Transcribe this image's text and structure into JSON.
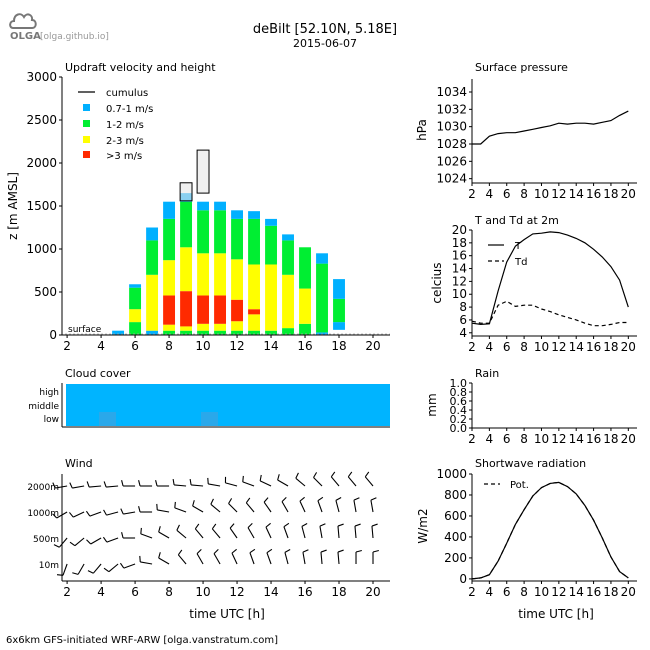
{
  "header": {
    "logo_text": "OLGA",
    "logo_link": "[olga.github.io]",
    "title": "deBilt [52.10N, 5.18E]",
    "date": "2015-06-07",
    "footer": "6x6km GFS-initiated WRF-ARW [olga.vanstratum.com]"
  },
  "colors": {
    "light_blue": "#00b0ff",
    "green": "#00ee32",
    "yellow": "#ffff00",
    "red": "#ff2a00",
    "cloud": "#00b4ff",
    "cloud_dark": "#2aa8ea"
  },
  "chart_data": [
    {
      "id": "updraft",
      "type": "bar",
      "title": "Updraft velocity and height",
      "ylabel": "z [m AMSL]",
      "xlabel": "",
      "xlim": [
        1.7,
        21
      ],
      "ylim": [
        0,
        3000
      ],
      "xticks": [
        2,
        4,
        6,
        8,
        10,
        12,
        14,
        16,
        18,
        20
      ],
      "yticks": [
        0,
        500,
        1000,
        1500,
        2000,
        2500,
        3000
      ],
      "annotation": "surface",
      "legend": [
        "cumulus",
        "0.7-1 m/s",
        "1-2 m/s",
        "2-3 m/s",
        ">3 m/s"
      ],
      "legend_position": "top-left",
      "bars": [
        {
          "x": 5,
          "segments": [
            {
              "from": 0,
              "to": 50,
              "cls": "0.7-1 m/s"
            }
          ]
        },
        {
          "x": 6,
          "segments": [
            {
              "from": 0,
              "to": 150,
              "cls": "1-2 m/s"
            },
            {
              "from": 150,
              "to": 300,
              "cls": "2-3 m/s"
            },
            {
              "from": 300,
              "to": 550,
              "cls": "1-2 m/s"
            },
            {
              "from": 550,
              "to": 590,
              "cls": "0.7-1 m/s"
            }
          ]
        },
        {
          "x": 7,
          "segments": [
            {
              "from": 0,
              "to": 50,
              "cls": "0.7-1 m/s"
            },
            {
              "from": 50,
              "to": 700,
              "cls": "2-3 m/s"
            },
            {
              "from": 700,
              "to": 1100,
              "cls": "1-2 m/s"
            },
            {
              "from": 1100,
              "to": 1250,
              "cls": "0.7-1 m/s"
            }
          ]
        },
        {
          "x": 8,
          "segments": [
            {
              "from": 0,
              "to": 50,
              "cls": "1-2 m/s"
            },
            {
              "from": 50,
              "to": 120,
              "cls": "2-3 m/s"
            },
            {
              "from": 120,
              "to": 460,
              "cls": "red"
            },
            {
              "from": 460,
              "to": 870,
              "cls": "2-3 m/s"
            },
            {
              "from": 870,
              "to": 1350,
              "cls": "1-2 m/s"
            },
            {
              "from": 1350,
              "to": 1550,
              "cls": "0.7-1 m/s"
            }
          ]
        },
        {
          "x": 9,
          "segments": [
            {
              "from": 0,
              "to": 50,
              "cls": "1-2 m/s"
            },
            {
              "from": 50,
              "to": 100,
              "cls": "2-3 m/s"
            },
            {
              "from": 100,
              "to": 510,
              "cls": "red"
            },
            {
              "from": 510,
              "to": 1020,
              "cls": "2-3 m/s"
            },
            {
              "from": 1020,
              "to": 1550,
              "cls": "1-2 m/s"
            },
            {
              "from": 1550,
              "to": 1650,
              "cls": "0.7-1 m/s"
            }
          ]
        },
        {
          "x": 10,
          "segments": [
            {
              "from": 0,
              "to": 50,
              "cls": "1-2 m/s"
            },
            {
              "from": 50,
              "to": 130,
              "cls": "2-3 m/s"
            },
            {
              "from": 130,
              "to": 460,
              "cls": "red"
            },
            {
              "from": 460,
              "to": 950,
              "cls": "2-3 m/s"
            },
            {
              "from": 950,
              "to": 1450,
              "cls": "1-2 m/s"
            },
            {
              "from": 1450,
              "to": 1550,
              "cls": "0.7-1 m/s"
            }
          ]
        },
        {
          "x": 11,
          "segments": [
            {
              "from": 0,
              "to": 50,
              "cls": "1-2 m/s"
            },
            {
              "from": 50,
              "to": 130,
              "cls": "2-3 m/s"
            },
            {
              "from": 130,
              "to": 460,
              "cls": "red"
            },
            {
              "from": 460,
              "to": 950,
              "cls": "2-3 m/s"
            },
            {
              "from": 950,
              "to": 1450,
              "cls": "1-2 m/s"
            },
            {
              "from": 1450,
              "to": 1550,
              "cls": "0.7-1 m/s"
            }
          ]
        },
        {
          "x": 12,
          "segments": [
            {
              "from": 0,
              "to": 50,
              "cls": "1-2 m/s"
            },
            {
              "from": 50,
              "to": 160,
              "cls": "2-3 m/s"
            },
            {
              "from": 160,
              "to": 410,
              "cls": "red"
            },
            {
              "from": 410,
              "to": 880,
              "cls": "2-3 m/s"
            },
            {
              "from": 880,
              "to": 1350,
              "cls": "1-2 m/s"
            },
            {
              "from": 1350,
              "to": 1450,
              "cls": "0.7-1 m/s"
            }
          ]
        },
        {
          "x": 13,
          "segments": [
            {
              "from": 0,
              "to": 50,
              "cls": "1-2 m/s"
            },
            {
              "from": 50,
              "to": 240,
              "cls": "2-3 m/s"
            },
            {
              "from": 240,
              "to": 300,
              "cls": "red"
            },
            {
              "from": 300,
              "to": 820,
              "cls": "2-3 m/s"
            },
            {
              "from": 820,
              "to": 1350,
              "cls": "1-2 m/s"
            },
            {
              "from": 1350,
              "to": 1440,
              "cls": "0.7-1 m/s"
            }
          ]
        },
        {
          "x": 14,
          "segments": [
            {
              "from": 0,
              "to": 50,
              "cls": "1-2 m/s"
            },
            {
              "from": 50,
              "to": 820,
              "cls": "2-3 m/s"
            },
            {
              "from": 820,
              "to": 1270,
              "cls": "1-2 m/s"
            },
            {
              "from": 1270,
              "to": 1350,
              "cls": "0.7-1 m/s"
            }
          ]
        },
        {
          "x": 15,
          "segments": [
            {
              "from": 0,
              "to": 80,
              "cls": "1-2 m/s"
            },
            {
              "from": 80,
              "to": 700,
              "cls": "2-3 m/s"
            },
            {
              "from": 700,
              "to": 1100,
              "cls": "1-2 m/s"
            },
            {
              "from": 1100,
              "to": 1170,
              "cls": "0.7-1 m/s"
            }
          ]
        },
        {
          "x": 16,
          "segments": [
            {
              "from": 0,
              "to": 130,
              "cls": "1-2 m/s"
            },
            {
              "from": 130,
              "to": 540,
              "cls": "2-3 m/s"
            },
            {
              "from": 540,
              "to": 1020,
              "cls": "1-2 m/s"
            }
          ]
        },
        {
          "x": 17,
          "segments": [
            {
              "from": 0,
              "to": 30,
              "cls": "0.7-1 m/s"
            },
            {
              "from": 30,
              "to": 830,
              "cls": "1-2 m/s"
            },
            {
              "from": 830,
              "to": 950,
              "cls": "0.7-1 m/s"
            }
          ]
        },
        {
          "x": 18,
          "segments": [
            {
              "from": 60,
              "to": 150,
              "cls": "0.7-1 m/s"
            },
            {
              "from": 150,
              "to": 420,
              "cls": "1-2 m/s"
            },
            {
              "from": 420,
              "to": 650,
              "cls": "0.7-1 m/s"
            }
          ]
        }
      ],
      "cumulus": [
        {
          "x": 9,
          "base": 1560,
          "top": 1770
        },
        {
          "x": 10,
          "base": 1650,
          "top": 2150
        }
      ]
    },
    {
      "id": "pressure",
      "type": "line",
      "title": "Surface pressure",
      "ylabel": "hPa",
      "xlim": [
        2,
        21
      ],
      "ylim": [
        1023.5,
        1035.5
      ],
      "xticks": [
        2,
        4,
        6,
        8,
        10,
        12,
        14,
        16,
        18,
        20
      ],
      "yticks": [
        1024,
        1026,
        1028,
        1030,
        1032,
        1034
      ],
      "series": [
        {
          "x": [
            2,
            3,
            4,
            5,
            6,
            7,
            8,
            9,
            10,
            11,
            12,
            13,
            14,
            15,
            16,
            17,
            18,
            19,
            20
          ],
          "y": [
            1028.0,
            1028.0,
            1028.9,
            1029.2,
            1029.3,
            1029.3,
            1029.5,
            1029.7,
            1029.9,
            1030.1,
            1030.4,
            1030.3,
            1030.4,
            1030.4,
            1030.3,
            1030.5,
            1030.7,
            1031.3,
            1031.8
          ]
        }
      ]
    },
    {
      "id": "temperature",
      "type": "line",
      "title": "T and Td at 2m",
      "ylabel": "celcius",
      "xlim": [
        2,
        21
      ],
      "ylim": [
        3.5,
        20
      ],
      "xticks": [
        2,
        4,
        6,
        8,
        10,
        12,
        14,
        16,
        18,
        20
      ],
      "yticks": [
        4,
        6,
        8,
        10,
        12,
        14,
        16,
        18,
        20
      ],
      "legend_position": "top-left",
      "series": [
        {
          "name": "T",
          "style": "solid",
          "x": [
            2,
            3,
            4,
            5,
            6,
            7,
            8,
            9,
            10,
            11,
            12,
            13,
            14,
            15,
            16,
            17,
            18,
            19,
            20
          ],
          "y": [
            5.5,
            5.3,
            5.4,
            10.5,
            15.0,
            17.5,
            18.5,
            19.4,
            19.5,
            19.7,
            19.6,
            19.2,
            18.7,
            18.0,
            17.0,
            15.8,
            14.3,
            12.2,
            8.0
          ]
        },
        {
          "name": "Td",
          "style": "dashed",
          "x": [
            2,
            3,
            4,
            5,
            6,
            7,
            8,
            9,
            10,
            11,
            12,
            13,
            14,
            15,
            16,
            17,
            18,
            19,
            20
          ],
          "y": [
            5.8,
            5.5,
            5.5,
            8.3,
            8.9,
            8.1,
            8.3,
            8.3,
            7.7,
            7.3,
            6.8,
            6.4,
            6.0,
            5.5,
            5.1,
            5.1,
            5.3,
            5.6,
            5.6
          ]
        }
      ]
    },
    {
      "id": "rain",
      "type": "bar",
      "title": "Rain",
      "ylabel": "mm",
      "xlim": [
        2,
        21
      ],
      "ylim": [
        0,
        1.0
      ],
      "xticks": [
        2,
        4,
        6,
        8,
        10,
        12,
        14,
        16,
        18,
        20
      ],
      "yticks": [
        0.0,
        0.2,
        0.4,
        0.6,
        0.8,
        1.0
      ],
      "values": []
    },
    {
      "id": "radiation",
      "type": "line",
      "title": "Shortwave radiation",
      "ylabel": "W/m2",
      "xlabel": "time UTC [h]",
      "xlim": [
        2,
        21
      ],
      "ylim": [
        -20,
        1000
      ],
      "xticks": [
        2,
        4,
        6,
        8,
        10,
        12,
        14,
        16,
        18,
        20
      ],
      "yticks": [
        0,
        200,
        400,
        600,
        800,
        1000
      ],
      "legend_position": "top-left",
      "series": [
        {
          "name": "",
          "style": "solid",
          "x": [
            2,
            3,
            4,
            5,
            6,
            7,
            8,
            9,
            10,
            11,
            12,
            13,
            14,
            15,
            16,
            17,
            18,
            19,
            20
          ],
          "y": [
            0,
            10,
            40,
            170,
            340,
            520,
            660,
            790,
            870,
            910,
            920,
            880,
            810,
            700,
            560,
            390,
            210,
            70,
            10
          ]
        },
        {
          "name": "Pot.",
          "style": "dashed",
          "x": [
            2,
            3,
            4,
            5,
            6,
            7,
            8,
            9,
            10,
            11,
            12,
            13,
            14,
            15,
            16,
            17,
            18,
            19,
            20
          ],
          "y": [
            0,
            10,
            40,
            170,
            340,
            520,
            660,
            790,
            870,
            910,
            920,
            880,
            810,
            700,
            560,
            390,
            210,
            70,
            10
          ]
        }
      ]
    },
    {
      "id": "cloud",
      "type": "heatmap",
      "title": "Cloud cover",
      "rows": [
        "high",
        "middle",
        "low"
      ],
      "xlim": [
        1.7,
        21
      ],
      "xticks": [
        2,
        4,
        6,
        8,
        10,
        12,
        14,
        16,
        18,
        20
      ],
      "fill": "high, middle and low cloud cover across full period"
    },
    {
      "id": "wind",
      "type": "wind_barbs",
      "title": "Wind",
      "xlabel": "time UTC [h]",
      "levels": [
        "2000m",
        "1000m",
        "500m",
        "10m"
      ],
      "xlim": [
        1.7,
        21
      ],
      "xticks": [
        2,
        4,
        6,
        8,
        10,
        12,
        14,
        16,
        18,
        20
      ],
      "rows": [
        {
          "level": "2000m",
          "x": [
            2,
            3,
            4,
            5,
            6,
            7,
            8,
            9,
            10,
            11,
            12,
            13,
            14,
            15,
            16,
            17,
            18,
            19,
            20
          ],
          "dir": [
            260,
            260,
            265,
            265,
            270,
            270,
            270,
            275,
            275,
            280,
            285,
            290,
            295,
            300,
            310,
            315,
            320,
            320,
            320
          ]
        },
        {
          "level": "1000m",
          "x": [
            2,
            3,
            4,
            5,
            6,
            7,
            8,
            9,
            10,
            11,
            12,
            13,
            14,
            15,
            16,
            17,
            18,
            19,
            20
          ],
          "dir": [
            240,
            245,
            250,
            255,
            260,
            270,
            280,
            290,
            300,
            310,
            315,
            320,
            325,
            330,
            335,
            340,
            345,
            350,
            350
          ]
        },
        {
          "level": "500m",
          "x": [
            2,
            3,
            4,
            5,
            6,
            7,
            8,
            9,
            10,
            11,
            12,
            13,
            14,
            15,
            16,
            17,
            18,
            19,
            20
          ],
          "dir": [
            220,
            230,
            240,
            250,
            270,
            290,
            300,
            310,
            320,
            320,
            325,
            330,
            335,
            340,
            345,
            350,
            355,
            355,
            355
          ]
        },
        {
          "level": "10m",
          "x": [
            2,
            3,
            4,
            5,
            6,
            7,
            8,
            9,
            10,
            11,
            12,
            13,
            14,
            15,
            16,
            17,
            18,
            19,
            20
          ],
          "dir": [
            200,
            210,
            220,
            230,
            250,
            280,
            300,
            320,
            330,
            330,
            335,
            340,
            340,
            345,
            350,
            355,
            355,
            0,
            0
          ]
        }
      ]
    }
  ]
}
